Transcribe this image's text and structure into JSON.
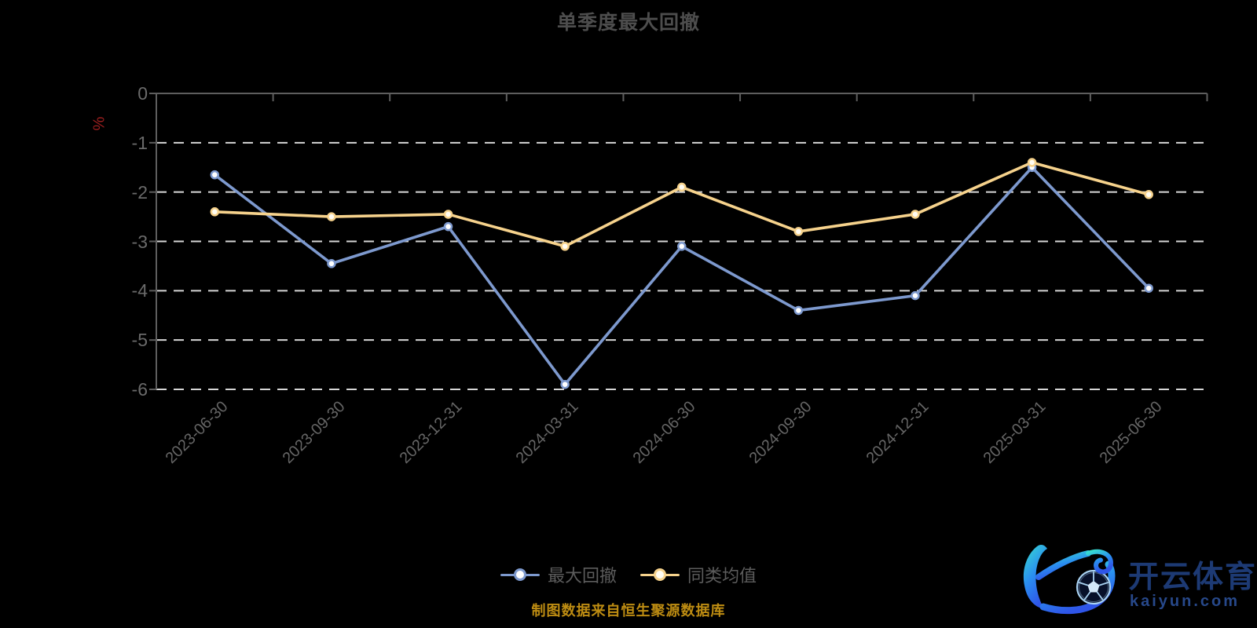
{
  "title": {
    "text": "单季度最大回撤"
  },
  "caption": {
    "text": "制图数据来自恒生聚源数据库"
  },
  "watermark": {
    "brand": "开云体育",
    "domain": "kaiyun.com"
  },
  "chart_data": {
    "type": "line",
    "title": "单季度最大回撤",
    "categories": [
      "2023-06-30",
      "2023-09-30",
      "2023-12-31",
      "2024-03-31",
      "2024-06-30",
      "2024-09-30",
      "2024-12-31",
      "2025-03-31",
      "2025-06-30"
    ],
    "series": [
      {
        "name": "最大回撤",
        "color": "#7d99ce",
        "values": [
          -1.65,
          -3.45,
          -2.7,
          -5.9,
          -3.1,
          -4.4,
          -4.1,
          -1.5,
          -3.95
        ]
      },
      {
        "name": "同类均值",
        "color": "#f6d28c",
        "values": [
          -2.4,
          -2.5,
          -2.45,
          -3.1,
          -1.9,
          -2.8,
          -2.45,
          -1.4,
          -2.05
        ]
      }
    ],
    "xlabel": "",
    "ylabel": "%",
    "ylim": [
      -6,
      0
    ],
    "yticks": [
      0,
      -1,
      -2,
      -3,
      -4,
      -5,
      -6
    ],
    "x_label_rotation": 45,
    "grid": "horizontal-dashed",
    "axis_line_position": "zero-top",
    "legend_position": "bottom-center"
  },
  "colors": {
    "background": "#000000",
    "title_text": "#4d4d4d",
    "axis_line": "#5e5e5e",
    "y_label_text": "#6a6a6a",
    "x_label_text": "#656565",
    "grid_line": "#d6d6d6",
    "unit_label": "#9e1f1f",
    "legend_text": "#5c5c5c",
    "caption_text": "#bd8c12",
    "series_drawdown": "#7d99ce",
    "series_peer_avg": "#f6d28c",
    "watermark_brand": "#1d3a74",
    "watermark_domain": "#27488a"
  }
}
